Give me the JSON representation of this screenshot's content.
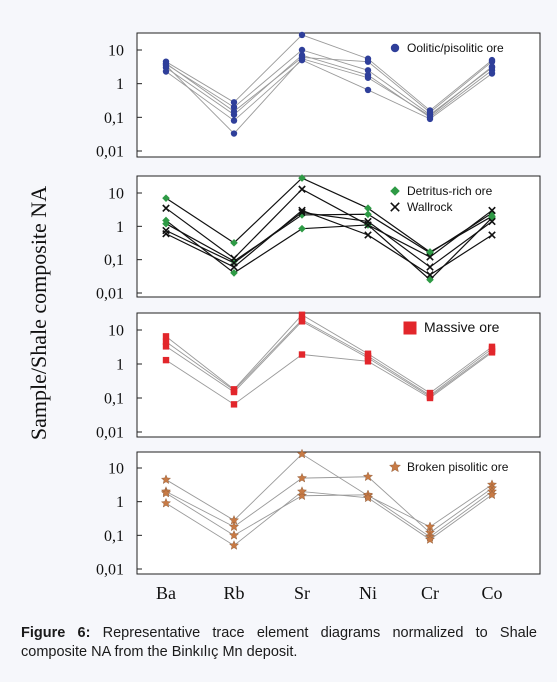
{
  "figure": {
    "caption_label": "Figure 6:",
    "caption_text": "Representative trace element diagrams normalized to Shale composite NA from the Binkılıç Mn deposit."
  },
  "chart_data": {
    "type": "line",
    "ylabel": "Sample/Shale composite NA",
    "categories": [
      "Ba",
      "Rb",
      "Sr",
      "Ni",
      "Cr",
      "Co"
    ],
    "yscale": "log",
    "ytick_labels": [
      "10",
      "1",
      "0,1",
      "0,01"
    ],
    "yticks": [
      10,
      1,
      0.1,
      0.01
    ],
    "grid": false,
    "legend_position": "top-right",
    "panels": [
      {
        "id": "oolitic",
        "ylim": [
          0.01,
          30
        ],
        "legend": [
          {
            "label": "Oolitic/pisolitic ore",
            "marker": "circle",
            "color": "#2f3f9a"
          }
        ],
        "line_color": "#9a9a9a",
        "series": [
          {
            "group": 0,
            "values": [
              4.5,
              0.28,
              28,
              5.5,
              0.16,
              5
            ]
          },
          {
            "group": 0,
            "values": [
              3.8,
              0.2,
              10,
              2.5,
              0.12,
              3
            ]
          },
          {
            "group": 0,
            "values": [
              3.0,
              0.12,
              7,
              1.8,
              0.1,
              2.5
            ]
          },
          {
            "group": 0,
            "values": [
              2.3,
              0.08,
              5,
              0.65,
              0.09,
              2
            ]
          },
          {
            "group": 0,
            "values": [
              4.0,
              0.15,
              6,
              4.5,
              0.14,
              4.5
            ]
          },
          {
            "group": 0,
            "values": [
              3.5,
              0.033,
              5.5,
              1.5,
              0.11,
              3.2
            ]
          }
        ]
      },
      {
        "id": "detritus",
        "ylim": [
          0.01,
          30
        ],
        "legend": [
          {
            "label": "Detritus-rich ore",
            "marker": "diamond",
            "color": "#2e9a45"
          },
          {
            "label": "Wallrock",
            "marker": "cross",
            "color": "#111111"
          }
        ],
        "line_color": "#111111",
        "series": [
          {
            "group": 0,
            "values": [
              7,
              0.32,
              28,
              3.5,
              0.17,
              2
            ]
          },
          {
            "group": 0,
            "values": [
              1.5,
              0.04,
              0.85,
              1.1,
              0.025,
              1.8
            ]
          },
          {
            "group": 0,
            "values": [
              1.2,
              0.09,
              2.2,
              2.3,
              0.16,
              2.5
            ]
          },
          {
            "group": 1,
            "values": [
              3.5,
              0.11,
              13,
              1.1,
              0.12,
              3
            ]
          },
          {
            "group": 1,
            "values": [
              0.6,
              0.06,
              3,
              0.55,
              0.035,
              0.55
            ]
          },
          {
            "group": 1,
            "values": [
              0.75,
              0.08,
              2.6,
              1.4,
              0.06,
              1.4
            ]
          }
        ]
      },
      {
        "id": "massive",
        "ylim": [
          0.01,
          30
        ],
        "legend": [
          {
            "label": "Massive ore",
            "marker": "square",
            "color": "#e2262b"
          }
        ],
        "line_color": "#9a9a9a",
        "series": [
          {
            "group": 0,
            "values": [
              6.5,
              0.18,
              28,
              2,
              0.14,
              3.2
            ]
          },
          {
            "group": 0,
            "values": [
              4.5,
              0.17,
              20,
              1.7,
              0.12,
              2.8
            ]
          },
          {
            "group": 0,
            "values": [
              3.3,
              0.15,
              18,
              1.5,
              0.11,
              2.4
            ]
          },
          {
            "group": 0,
            "values": [
              1.3,
              0.065,
              1.9,
              1.2,
              0.1,
              2.2
            ]
          }
        ]
      },
      {
        "id": "broken",
        "ylim": [
          0.01,
          30
        ],
        "legend": [
          {
            "label": "Broken pisolitic ore",
            "marker": "star",
            "color": "#c77a45"
          }
        ],
        "line_color": "#9a9a9a",
        "series": [
          {
            "group": 0,
            "values": [
              4.5,
              0.28,
              26,
              1.5,
              0.18,
              3.2
            ]
          },
          {
            "group": 0,
            "values": [
              2,
              0.18,
              5,
              5.5,
              0.12,
              2.5
            ]
          },
          {
            "group": 0,
            "values": [
              1.8,
              0.1,
              1.5,
              1.6,
              0.09,
              2
            ]
          },
          {
            "group": 0,
            "values": [
              0.9,
              0.05,
              2,
              1.3,
              0.075,
              1.6
            ]
          }
        ]
      }
    ]
  }
}
